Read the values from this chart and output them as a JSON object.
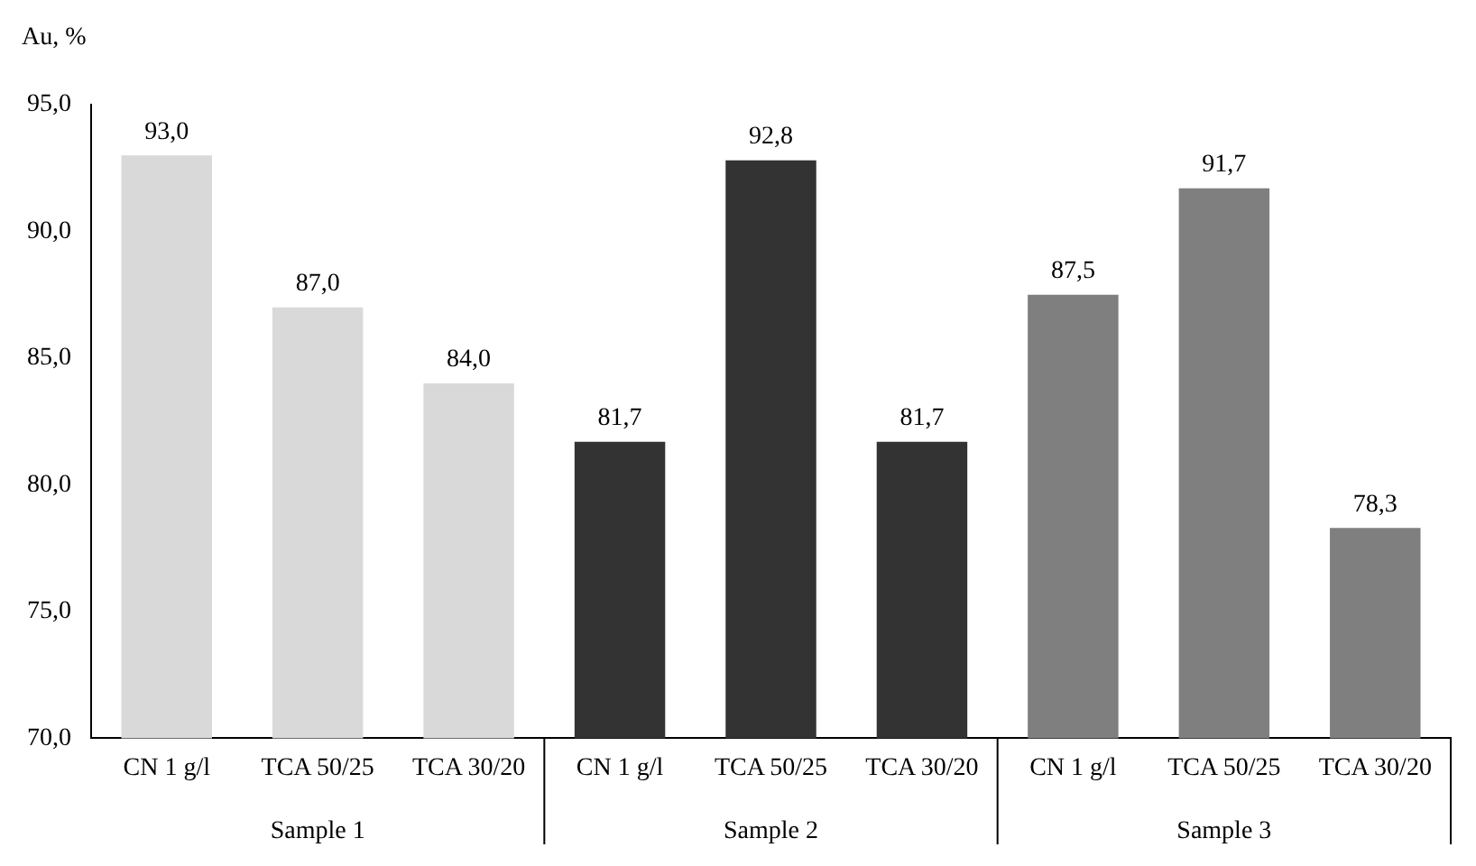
{
  "chart_data": {
    "type": "bar",
    "ylabel": "Au, %",
    "categories": [
      "CN 1 g/l",
      "TCA 50/25",
      "TCA 30/20",
      "CN 1 g/l",
      "TCA 50/25",
      "TCA 30/20",
      "CN 1 g/l",
      "TCA 50/25",
      "TCA 30/20"
    ],
    "values": [
      93.0,
      87.0,
      84.0,
      81.7,
      92.8,
      81.7,
      87.5,
      91.7,
      78.3
    ],
    "value_labels": [
      "93,0",
      "87,0",
      "84,0",
      "81,7",
      "92,8",
      "81,7",
      "87,5",
      "91,7",
      "78,3"
    ],
    "colors": [
      "#d9d9d9",
      "#d9d9d9",
      "#d9d9d9",
      "#333333",
      "#333333",
      "#333333",
      "#7f7f7f",
      "#7f7f7f",
      "#7f7f7f"
    ],
    "ylim": [
      70,
      95
    ],
    "yticks": [
      {
        "value": 70,
        "label": "70,0"
      },
      {
        "value": 75,
        "label": "75,0"
      },
      {
        "value": 80,
        "label": "80,0"
      },
      {
        "value": 85,
        "label": "85,0"
      },
      {
        "value": 90,
        "label": "90,0"
      },
      {
        "value": 95,
        "label": "95,0"
      }
    ],
    "annotations": [
      "Sample 1",
      "Sample 2",
      "Sample 3"
    ],
    "grid": false,
    "legend": false
  }
}
